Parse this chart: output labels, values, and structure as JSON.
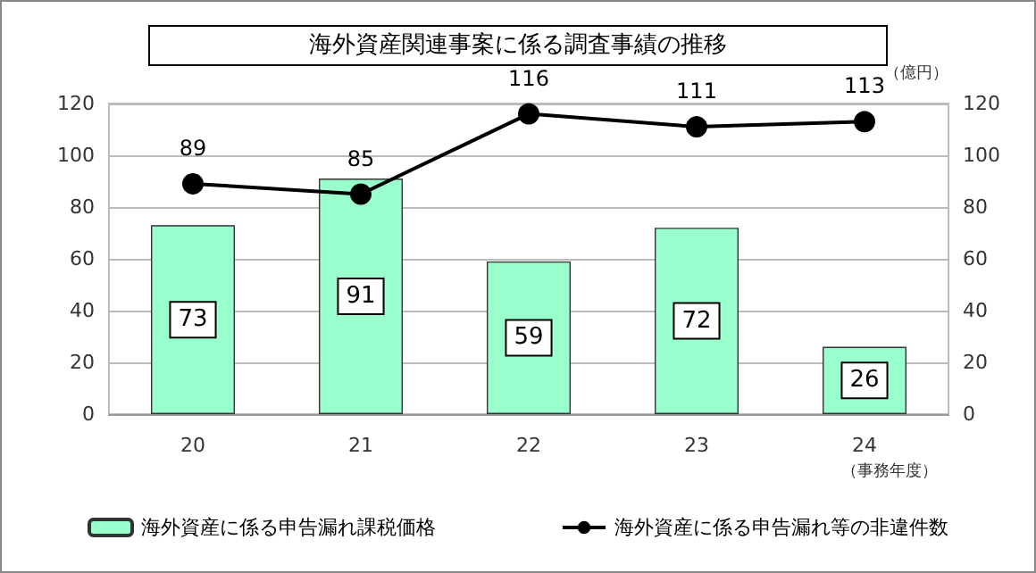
{
  "chart_data": {
    "type": "bar",
    "title": "海外資産関連事案に係る調査事績の推移",
    "xlabel": "（事務年度）",
    "y2label": "（億円）",
    "categories": [
      "20",
      "21",
      "22",
      "23",
      "24"
    ],
    "series": [
      {
        "name": "海外資産に係る申告漏れ課税価格",
        "color": "#99ffcc",
        "values": [
          73,
          91,
          59,
          72,
          26
        ]
      },
      {
        "name": "海外資産に係る申告漏れ等の非違件数",
        "type": "line",
        "color": "#000000",
        "values": [
          89,
          85,
          116,
          111,
          113
        ]
      }
    ],
    "ylim": [
      0,
      120
    ],
    "yticks": [
      0,
      20,
      40,
      60,
      80,
      100,
      120
    ],
    "y2lim": [
      0,
      120
    ],
    "y2ticks": [
      0,
      20,
      40,
      60,
      80,
      100,
      120
    ],
    "grid": "y",
    "legend": "bottom",
    "marker": "circle",
    "line_style": "solid",
    "data_labels": true
  }
}
